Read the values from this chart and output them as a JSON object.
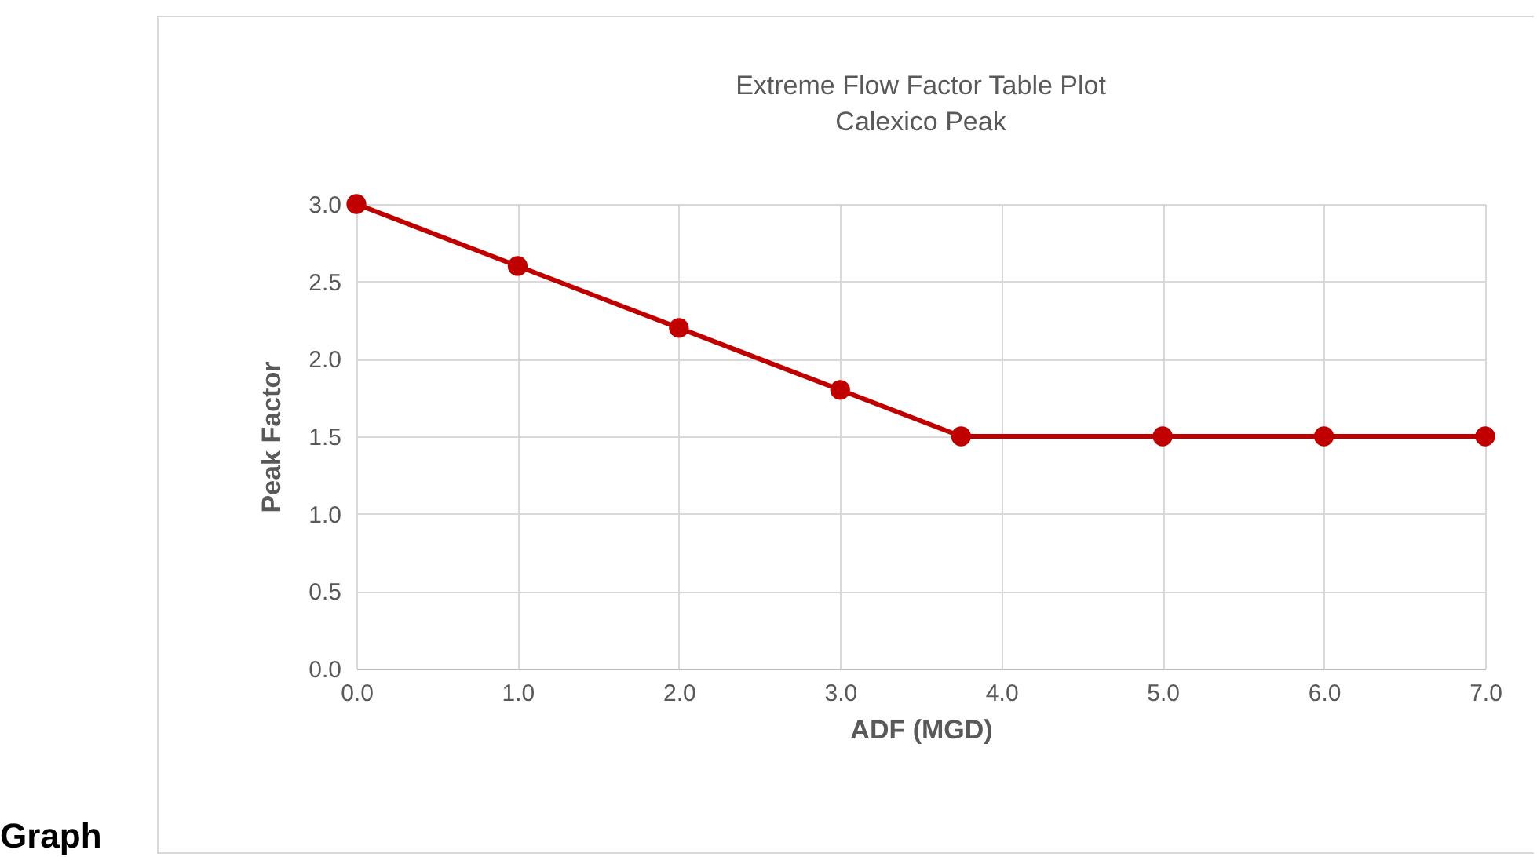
{
  "chart_data": {
    "type": "line",
    "title": "Extreme Flow Factor Table Plot",
    "subtitle": "Calexico Peak",
    "xlabel": "ADF (MGD)",
    "ylabel": "Peak Factor",
    "x": [
      0,
      1,
      2,
      3,
      3.75,
      5,
      6,
      7
    ],
    "series": [
      {
        "color": "#c00000",
        "values": [
          3.0,
          2.6,
          2.2,
          1.8,
          1.5,
          1.5,
          1.5,
          1.5
        ]
      }
    ],
    "xlim": [
      0,
      7
    ],
    "xticks": [
      {
        "value": 0,
        "label": "0.0"
      },
      {
        "value": 1,
        "label": "1.0"
      },
      {
        "value": 2,
        "label": "2.0"
      },
      {
        "value": 3,
        "label": "3.0"
      },
      {
        "value": 4,
        "label": "4.0"
      },
      {
        "value": 5,
        "label": "5.0"
      },
      {
        "value": 6,
        "label": "6.0"
      },
      {
        "value": 7,
        "label": "7.0"
      }
    ],
    "ylim": [
      0,
      3
    ],
    "yticks": [
      {
        "value": 0,
        "label": "0.0"
      },
      {
        "value": 0.5,
        "label": "0.5"
      },
      {
        "value": 1,
        "label": "1.0"
      },
      {
        "value": 1.5,
        "label": "1.5"
      },
      {
        "value": 2,
        "label": "2.0"
      },
      {
        "value": 2.5,
        "label": "2.5"
      },
      {
        "value": 3,
        "label": "3.0"
      }
    ],
    "grid": true,
    "marker": "circle",
    "line_style": "solid",
    "annotations": [
      "Graph"
    ]
  }
}
